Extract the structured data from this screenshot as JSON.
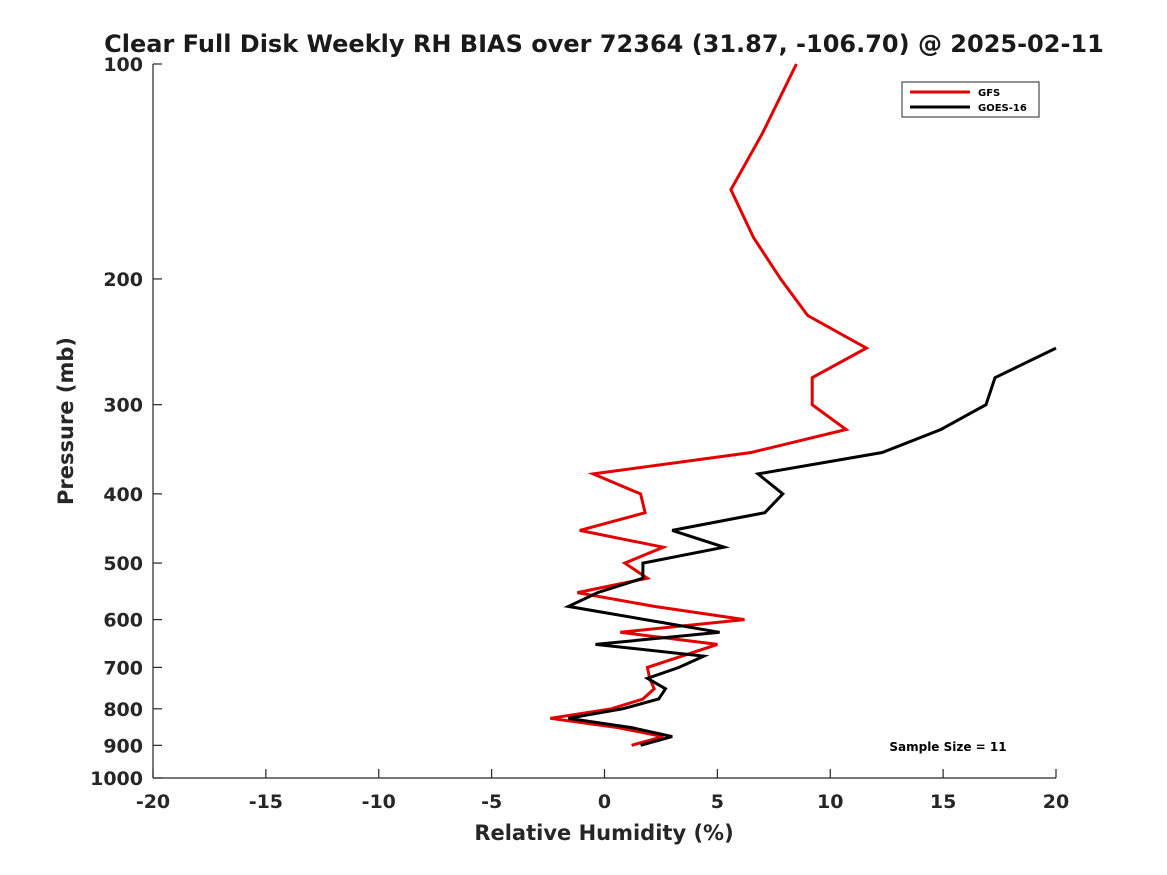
{
  "chart_data": {
    "type": "line",
    "title": "Clear Full Disk Weekly RH BIAS over 72364 (31.87, -106.70) @ 2025-02-11",
    "xlabel": "Relative Humidity (%)",
    "ylabel": "Pressure (mb)",
    "xlim": [
      -20,
      20
    ],
    "ylim": [
      1000,
      100
    ],
    "yscale": "log",
    "y_reversed": true,
    "grid": false,
    "legend_position": "top-right",
    "x_ticks": [
      "-20",
      "-15",
      "-10",
      "-5",
      "0",
      "5",
      "10",
      "15",
      "20"
    ],
    "x_tick_values": [
      -20,
      -15,
      -10,
      -5,
      0,
      5,
      10,
      15,
      20
    ],
    "y_ticks": [
      "100",
      "200",
      "300",
      "400",
      "500",
      "600",
      "700",
      "800",
      "900",
      "1000"
    ],
    "y_tick_values": [
      100,
      200,
      300,
      400,
      500,
      600,
      700,
      800,
      900,
      1000
    ],
    "annotation": "Sample Size = 11",
    "series": [
      {
        "name": "GFS",
        "color": "#e30000",
        "points": [
          [
            8.5,
            100
          ],
          [
            7.0,
            125
          ],
          [
            5.6,
            150
          ],
          [
            6.6,
            175
          ],
          [
            7.8,
            200
          ],
          [
            9.0,
            225
          ],
          [
            11.6,
            250
          ],
          [
            9.2,
            275
          ],
          [
            9.2,
            300
          ],
          [
            10.7,
            325
          ],
          [
            6.5,
            350
          ],
          [
            -0.5,
            375
          ],
          [
            1.6,
            400
          ],
          [
            1.8,
            425
          ],
          [
            -1.1,
            450
          ],
          [
            2.6,
            475
          ],
          [
            0.9,
            500
          ],
          [
            1.9,
            525
          ],
          [
            -1.2,
            550
          ],
          [
            2.2,
            575
          ],
          [
            6.2,
            600
          ],
          [
            0.7,
            625
          ],
          [
            5.0,
            650
          ],
          [
            1.9,
            700
          ],
          [
            2.0,
            725
          ],
          [
            2.2,
            750
          ],
          [
            1.7,
            775
          ],
          [
            0.3,
            800
          ],
          [
            -2.4,
            825
          ],
          [
            0.6,
            850
          ],
          [
            2.6,
            875
          ],
          [
            1.2,
            900
          ]
        ]
      },
      {
        "name": "GOES-16",
        "color": "#000000",
        "points": [
          [
            20.0,
            250
          ],
          [
            17.3,
            275
          ],
          [
            16.9,
            300
          ],
          [
            14.9,
            325
          ],
          [
            12.3,
            350
          ],
          [
            6.8,
            375
          ],
          [
            7.9,
            400
          ],
          [
            7.1,
            425
          ],
          [
            3.0,
            450
          ],
          [
            5.3,
            475
          ],
          [
            1.7,
            500
          ],
          [
            1.7,
            525
          ],
          [
            -0.3,
            550
          ],
          [
            -1.6,
            575
          ],
          [
            1.8,
            600
          ],
          [
            5.1,
            625
          ],
          [
            -0.4,
            650
          ],
          [
            4.4,
            675
          ],
          [
            3.3,
            700
          ],
          [
            1.9,
            725
          ],
          [
            2.7,
            750
          ],
          [
            2.4,
            775
          ],
          [
            0.8,
            800
          ],
          [
            -1.6,
            825
          ],
          [
            1.2,
            850
          ],
          [
            3.0,
            875
          ],
          [
            1.6,
            900
          ]
        ]
      }
    ]
  }
}
